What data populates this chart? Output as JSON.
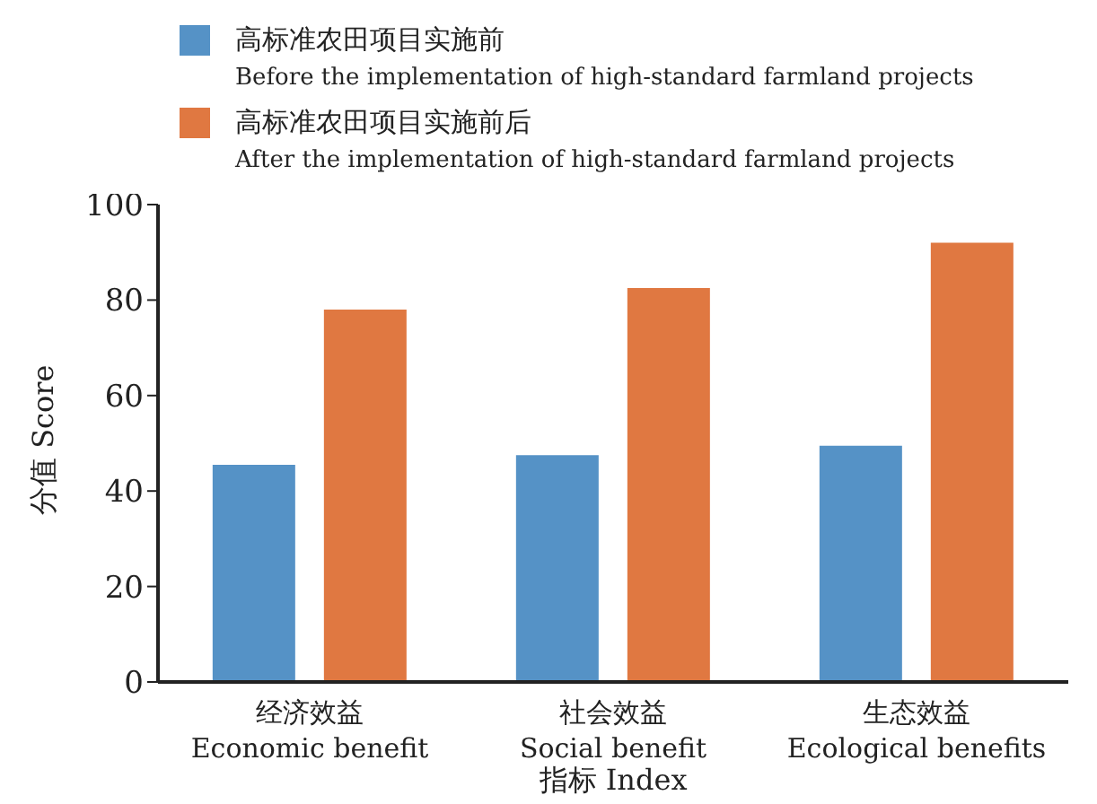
{
  "chart_data": {
    "type": "bar",
    "categories": [
      "经济效益\nEconomic benefit",
      "社会效益\nSocial benefit",
      "生态效益\nEcological benefits"
    ],
    "series": [
      {
        "name": "高标准农田项目实施前\nBefore the implementation of high-standard farmland projects",
        "color": "#5592c6",
        "values": [
          45.5,
          47.5,
          49.5
        ]
      },
      {
        "name": "高标准农田项目实施前后\nAfter the implementation of high-standard farmland projects",
        "color": "#e07841",
        "values": [
          78,
          82.5,
          92
        ]
      }
    ],
    "xlabel": "指标 Index",
    "ylabel": "分值 Score",
    "ylim": [
      0,
      100
    ],
    "yticks": [
      0,
      20,
      40,
      60,
      80,
      100
    ],
    "grid": false,
    "legend": "top"
  }
}
